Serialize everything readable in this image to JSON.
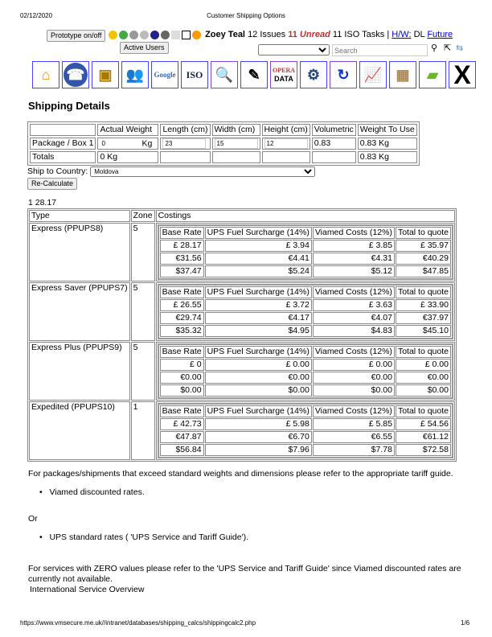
{
  "header": {
    "date": "02/12/2020",
    "title": "Customer Shipping Options"
  },
  "topbar": {
    "prototype_btn": "Prototype on/off",
    "active_users_btn": "Active Users",
    "user": "Zoey Teal",
    "issues": "12 Issues",
    "unread_count": "11",
    "unread": "Unread",
    "iso_tasks": "11 ISO Tasks |",
    "hw": "H/W:",
    "dl": "DL",
    "future": "Future",
    "search_placeholder": "Search"
  },
  "toolbar": {
    "icons": [
      "home-icon",
      "phone-icon",
      "treasure-chest-icon",
      "users-icon",
      "google-icon",
      "iso-icon",
      "magnifier-icon",
      "edit-icon",
      "opera-data-icon",
      "gears-icon",
      "refresh-icon",
      "chart-folder-icon",
      "box-icon",
      "book-icon",
      "close-icon"
    ],
    "labels": {
      "google": "Google",
      "iso": "ISO",
      "opera": "OPERA",
      "data": "DATA",
      "x": "X"
    }
  },
  "page_title": "Shipping Details",
  "package_table": {
    "headers": [
      "",
      "Actual Weight",
      "Length (cm)",
      "Width (cm)",
      "Height (cm)",
      "Volumetric",
      "Weight To Use"
    ],
    "row_label": "Package / Box 1",
    "actual_weight": "0",
    "kg": "Kg",
    "length": "23",
    "width": "15",
    "height": "12",
    "volumetric": "0.83",
    "weight_to_use": "0.83 Kg",
    "totals_label": "Totals",
    "totals_weight": "0 Kg",
    "totals_use": "0.83 Kg"
  },
  "ship_to": {
    "label": "Ship to Country:",
    "value": "Moldova"
  },
  "recalc_btn": "Re-Calculate",
  "debug_line": "1 28.17",
  "costings": {
    "headers": [
      "Type",
      "Zone",
      "Costings"
    ],
    "inner_headers": [
      "Base Rate",
      "UPS Fuel Surcharge (14%)",
      "Viamed Costs (12%)",
      "Total to quote"
    ],
    "services": [
      {
        "name": "Express (PPUPS8)",
        "zone": "5",
        "rows": [
          [
            "£ 28.17",
            "£ 3.94",
            "£ 3.85",
            "£ 35.97"
          ],
          [
            "€31.56",
            "€4.41",
            "€4.31",
            "€40.29"
          ],
          [
            "$37.47",
            "$5.24",
            "$5.12",
            "$47.85"
          ]
        ]
      },
      {
        "name": "Express Saver (PPUPS7)",
        "zone": "5",
        "rows": [
          [
            "£ 26.55",
            "£ 3.72",
            "£ 3.63",
            "£ 33.90"
          ],
          [
            "€29.74",
            "€4.17",
            "€4.07",
            "€37.97"
          ],
          [
            "$35.32",
            "$4.95",
            "$4.83",
            "$45.10"
          ]
        ]
      },
      {
        "name": "Express Plus (PPUPS9)",
        "zone": "5",
        "rows": [
          [
            "£ 0",
            "£ 0.00",
            "£ 0.00",
            "£ 0.00"
          ],
          [
            "€0.00",
            "€0.00",
            "€0.00",
            "€0.00"
          ],
          [
            "$0.00",
            "$0.00",
            "$0.00",
            "$0.00"
          ]
        ]
      },
      {
        "name": "Expedited (PPUPS10)",
        "zone": "1",
        "rows": [
          [
            "£ 42.73",
            "£ 5.98",
            "£ 5.85",
            "£ 54.56"
          ],
          [
            "€47.87",
            "€6.70",
            "€6.55",
            "€61.12"
          ],
          [
            "$56.84",
            "$7.96",
            "$7.78",
            "$72.58"
          ]
        ]
      }
    ]
  },
  "notes": {
    "exceed": "For packages/shipments that exceed standard weights and dimensions please refer to the appropriate tariff guide.",
    "bullet1": "Viamed discounted rates.",
    "or": "Or",
    "bullet2": "UPS standard rates ( 'UPS Service and Tariff Guide').",
    "zero": "For services with ZERO values please refer to the 'UPS Service and Tariff Guide' since Viamed discounted rates are currently not available.",
    "intl": "International Service Overview"
  },
  "footer": {
    "url": "https://www.vmsecure.me.uk//intranet/databases/shipping_calcs/shippingcalc2.php",
    "page": "1/6"
  },
  "colors": {
    "unread": "#c03030",
    "link": "#0000cc",
    "toolbar_border": "#4444ff"
  }
}
